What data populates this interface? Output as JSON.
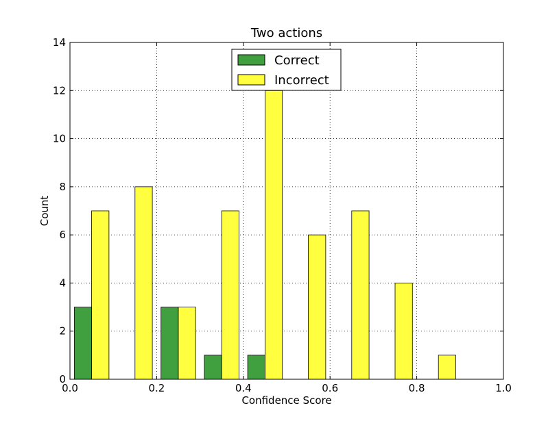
{
  "chart_data": {
    "type": "bar",
    "title": "Two actions",
    "xlabel": "Confidence Score",
    "ylabel": "Count",
    "xlim": [
      0.0,
      1.0
    ],
    "ylim": [
      0,
      14
    ],
    "bin_width": 0.1,
    "bins": [
      [
        0.0,
        0.1
      ],
      [
        0.1,
        0.2
      ],
      [
        0.2,
        0.3
      ],
      [
        0.3,
        0.4
      ],
      [
        0.4,
        0.5
      ],
      [
        0.5,
        0.6
      ],
      [
        0.6,
        0.7
      ],
      [
        0.7,
        0.8
      ],
      [
        0.8,
        0.9
      ],
      [
        0.9,
        1.0
      ]
    ],
    "series": [
      {
        "name": "Correct",
        "color": "#40a040",
        "values": [
          3,
          0,
          3,
          1,
          1,
          0,
          0,
          0,
          0,
          0
        ]
      },
      {
        "name": "Incorrect",
        "color": "#ffff40",
        "values": [
          7,
          8,
          3,
          7,
          12,
          6,
          7,
          4,
          1,
          0
        ]
      }
    ],
    "xticks": [
      "0.0",
      "0.2",
      "0.4",
      "0.6",
      "0.8",
      "1.0"
    ],
    "xtick_values": [
      0.0,
      0.2,
      0.4,
      0.6,
      0.8,
      1.0
    ],
    "yticks": [
      "0",
      "2",
      "4",
      "6",
      "8",
      "10",
      "12",
      "14"
    ],
    "ytick_values": [
      0,
      2,
      4,
      6,
      8,
      10,
      12,
      14
    ],
    "grid": true,
    "legend_position": "upper center"
  }
}
